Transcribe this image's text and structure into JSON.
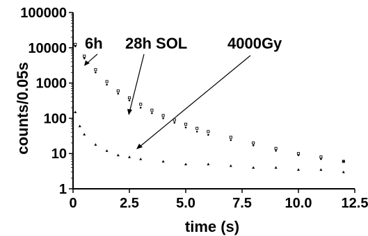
{
  "chart_data": {
    "type": "scatter",
    "title": "",
    "xlabel": "time (s)",
    "ylabel": "counts/0.05s",
    "xlim": [
      0,
      12.5
    ],
    "ylim": [
      1,
      100000
    ],
    "yscale": "log",
    "x_ticks": [
      "0",
      "2.5",
      "5.0",
      "7.5",
      "10.0",
      "12.5"
    ],
    "y_ticks": [
      "1",
      "10",
      "100",
      "1000",
      "10000",
      "100000"
    ],
    "grid": false,
    "series": [
      {
        "name": "6h",
        "marker": "dot",
        "x": [
          0.1,
          0.5,
          1,
          1.5,
          2,
          2.5,
          3,
          3.5,
          4,
          4.5,
          5,
          5.5,
          6,
          7,
          8,
          9,
          10,
          11,
          12
        ],
        "y": [
          11000,
          5000,
          2000,
          900,
          500,
          320,
          200,
          140,
          100,
          75,
          55,
          42,
          34,
          24,
          17,
          12,
          9,
          7,
          6
        ]
      },
      {
        "name": "28h SOL",
        "marker": "square",
        "x": [
          0.1,
          0.5,
          1,
          1.5,
          2,
          2.5,
          3,
          3.5,
          4,
          4.5,
          5,
          5.5,
          6,
          7,
          8,
          9,
          10,
          11,
          12
        ],
        "y": [
          12500,
          5800,
          2400,
          1100,
          600,
          380,
          250,
          170,
          120,
          90,
          68,
          52,
          42,
          29,
          20,
          14,
          10,
          8,
          6
        ]
      },
      {
        "name": "4000Gy",
        "marker": "triangle",
        "x": [
          0.1,
          0.3,
          0.5,
          1,
          1.5,
          2,
          2.5,
          3,
          4,
          5,
          6,
          7,
          8,
          9,
          10,
          11,
          12
        ],
        "y": [
          150,
          60,
          35,
          18,
          12,
          9,
          8,
          7,
          6,
          5,
          5,
          4.5,
          4,
          4,
          3.5,
          3.5,
          3
        ]
      }
    ],
    "annotations": [
      "6h",
      "28h SOL",
      "4000Gy"
    ]
  }
}
